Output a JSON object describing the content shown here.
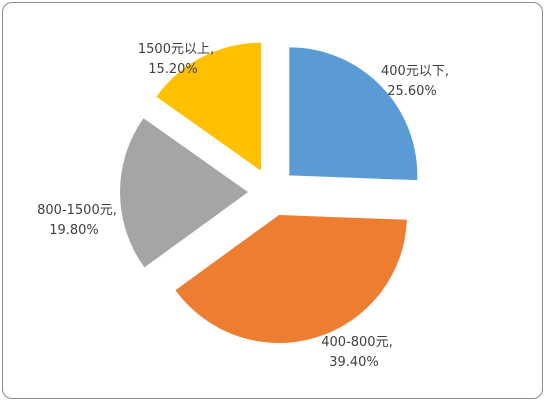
{
  "chart_data": {
    "type": "pie",
    "title": "",
    "exploded": true,
    "slices": [
      {
        "label_line1": "400元以下,",
        "label_line2": "25.60%",
        "value": 25.6,
        "color": "#5B9BD5"
      },
      {
        "label_line1": "400-800元,",
        "label_line2": "39.40%",
        "value": 39.4,
        "color": "#ED7D31"
      },
      {
        "label_line1": "800-1500元,",
        "label_line2": "19.80%",
        "value": 19.8,
        "color": "#A5A5A5"
      },
      {
        "label_line1": "1500元以上,",
        "label_line2": "15.20%",
        "value": 15.2,
        "color": "#FFC000"
      }
    ]
  }
}
